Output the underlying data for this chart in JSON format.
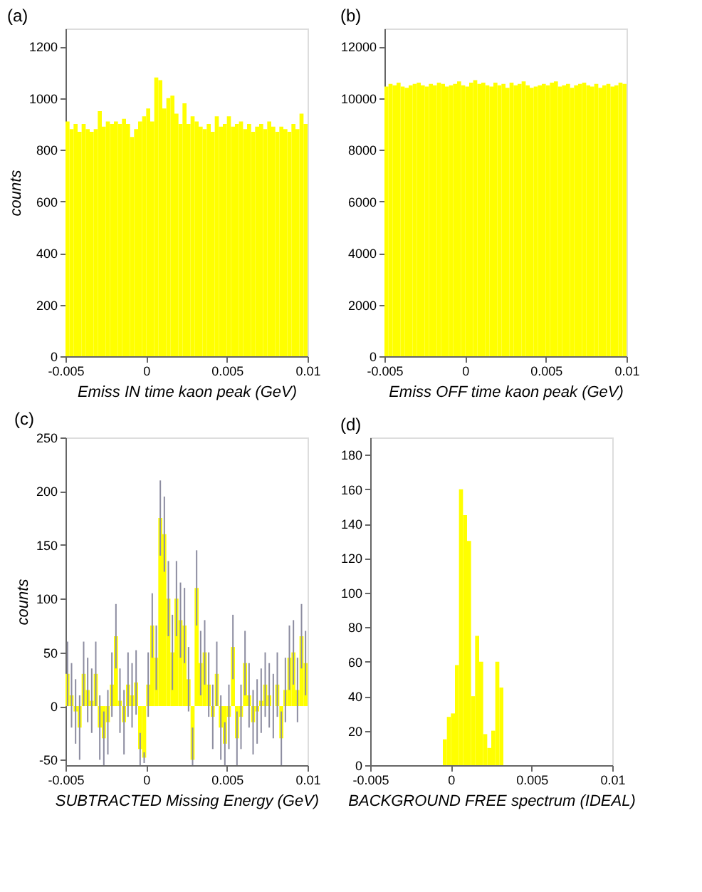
{
  "chart_data": [
    {
      "type": "histogram",
      "title": "(a)",
      "xlabel": "Emiss IN time kaon peak (GeV)",
      "ylabel": "counts",
      "color": "#ffff00",
      "bins": [
        -0.005,
        -0.00475,
        -0.0045,
        -0.00425,
        -0.004,
        -0.00375,
        -0.0035,
        -0.00325,
        -0.003,
        -0.00275,
        -0.0025,
        -0.00225,
        -0.002,
        -0.00175,
        -0.0015,
        -0.00125,
        -0.001,
        -0.00075,
        -0.0005,
        -0.00025,
        0,
        0.00025,
        0.0005,
        0.00075,
        0.001,
        0.00125,
        0.0015,
        0.00175,
        0.002,
        0.00225,
        0.0025,
        0.00275,
        0.003,
        0.00325,
        0.0035,
        0.00375,
        0.004,
        0.00425,
        0.0045,
        0.00475,
        0.005,
        0.00525,
        0.0055,
        0.00575,
        0.006,
        0.00625,
        0.0065,
        0.00675,
        0.007,
        0.00725,
        0.0075,
        0.00775,
        0.008,
        0.00825,
        0.0085,
        0.00875,
        0.009,
        0.00925,
        0.0095,
        0.00975,
        0.01
      ],
      "values": [
        910,
        880,
        900,
        870,
        900,
        880,
        870,
        880,
        950,
        890,
        910,
        900,
        910,
        900,
        920,
        900,
        850,
        880,
        910,
        930,
        960,
        910,
        1080,
        1070,
        960,
        1000,
        1010,
        940,
        900,
        980,
        900,
        930,
        910,
        890,
        880,
        900,
        870,
        930,
        890,
        900,
        930,
        890,
        900,
        910,
        880,
        900,
        870,
        890,
        900,
        880,
        910,
        890,
        870,
        890,
        880,
        870,
        900,
        880,
        940,
        900
      ],
      "xlim": [
        -0.005,
        0.01
      ],
      "xticks": [
        -0.005,
        0,
        0.005,
        0.01
      ],
      "ylim": [
        0,
        1270
      ],
      "yticks": [
        0,
        200,
        400,
        600,
        800,
        1000,
        1200
      ]
    },
    {
      "type": "histogram",
      "title": "(b)",
      "xlabel": "Emiss OFF time kaon peak (GeV)",
      "color": "#ffff00",
      "bins": [
        -0.005,
        -0.00475,
        -0.0045,
        -0.00425,
        -0.004,
        -0.00375,
        -0.0035,
        -0.00325,
        -0.003,
        -0.00275,
        -0.0025,
        -0.00225,
        -0.002,
        -0.00175,
        -0.0015,
        -0.00125,
        -0.001,
        -0.00075,
        -0.0005,
        -0.00025,
        0,
        0.00025,
        0.0005,
        0.00075,
        0.001,
        0.00125,
        0.0015,
        0.00175,
        0.002,
        0.00225,
        0.0025,
        0.00275,
        0.003,
        0.00325,
        0.0035,
        0.00375,
        0.004,
        0.00425,
        0.0045,
        0.00475,
        0.005,
        0.00525,
        0.0055,
        0.00575,
        0.006,
        0.00625,
        0.0065,
        0.00675,
        0.007,
        0.00725,
        0.0075,
        0.00775,
        0.008,
        0.00825,
        0.0085,
        0.00875,
        0.009,
        0.00925,
        0.0095,
        0.00975,
        0.01
      ],
      "values": [
        10450,
        10550,
        10500,
        10600,
        10450,
        10400,
        10500,
        10550,
        10600,
        10500,
        10450,
        10550,
        10500,
        10600,
        10550,
        10450,
        10500,
        10550,
        10650,
        10500,
        10450,
        10600,
        10700,
        10550,
        10600,
        10500,
        10450,
        10600,
        10500,
        10550,
        10400,
        10600,
        10500,
        10550,
        10650,
        10500,
        10400,
        10450,
        10500,
        10550,
        10500,
        10600,
        10650,
        10450,
        10500,
        10550,
        10400,
        10500,
        10550,
        10600,
        10500,
        10450,
        10550,
        10400,
        10500,
        10550,
        10450,
        10500,
        10600,
        10550
      ],
      "xlim": [
        -0.005,
        0.01
      ],
      "xticks": [
        -0.005,
        0,
        0.005,
        0.01
      ],
      "ylim": [
        0,
        12700
      ],
      "yticks": [
        0,
        2000,
        4000,
        6000,
        8000,
        10000,
        12000
      ]
    },
    {
      "type": "histogram",
      "title": "(c)",
      "xlabel": "SUBTRACTED Missing Energy (GeV)",
      "ylabel": "counts",
      "color": "#ffff00",
      "bins": [
        -0.005,
        -0.00475,
        -0.0045,
        -0.00425,
        -0.004,
        -0.00375,
        -0.0035,
        -0.00325,
        -0.003,
        -0.00275,
        -0.0025,
        -0.00225,
        -0.002,
        -0.00175,
        -0.0015,
        -0.00125,
        -0.001,
        -0.00075,
        -0.0005,
        -0.00025,
        0,
        0.00025,
        0.0005,
        0.00075,
        0.001,
        0.00125,
        0.0015,
        0.00175,
        0.002,
        0.00225,
        0.0025,
        0.00275,
        0.003,
        0.00325,
        0.0035,
        0.00375,
        0.004,
        0.00425,
        0.0045,
        0.00475,
        0.005,
        0.00525,
        0.0055,
        0.00575,
        0.006,
        0.00625,
        0.0065,
        0.00675,
        0.007,
        0.00725,
        0.0075,
        0.00775,
        0.008,
        0.00825,
        0.0085,
        0.00875,
        0.009,
        0.00925,
        0.0095,
        0.00975,
        0.01
      ],
      "values": [
        30,
        10,
        -5,
        -20,
        30,
        15,
        5,
        30,
        -20,
        -30,
        -15,
        20,
        65,
        5,
        -15,
        20,
        10,
        22,
        -40,
        -48,
        20,
        75,
        45,
        175,
        160,
        100,
        50,
        100,
        80,
        75,
        25,
        -50,
        110,
        40,
        50,
        20,
        -10,
        30,
        -20,
        -35,
        -10,
        55,
        -30,
        -10,
        40,
        10,
        -15,
        -5,
        5,
        20,
        10,
        0,
        20,
        -30,
        15,
        45,
        50,
        15,
        65,
        40
      ],
      "errors": [
        30,
        30,
        30,
        30,
        30,
        30,
        30,
        30,
        30,
        25,
        30,
        30,
        30,
        30,
        30,
        30,
        30,
        30,
        15,
        5,
        30,
        30,
        30,
        35,
        35,
        35,
        35,
        35,
        35,
        35,
        30,
        [
          -55,
          -20
        ],
        35,
        30,
        30,
        30,
        30,
        30,
        30,
        20,
        30,
        30,
        25,
        30,
        30,
        30,
        30,
        30,
        30,
        30,
        30,
        30,
        30,
        25,
        30,
        30,
        30,
        30,
        30,
        30
      ],
      "xlim": [
        -0.005,
        0.01
      ],
      "xticks": [
        -0.005,
        0,
        0.005,
        0.01
      ],
      "ylim": [
        -55,
        250
      ],
      "yticks": [
        -50,
        0,
        50,
        100,
        150,
        200,
        250
      ]
    },
    {
      "type": "histogram",
      "title": "(d)",
      "xlabel": "BACKGROUND FREE spectrum (IDEAL)",
      "color": "#ffff00",
      "bins": [
        -0.005,
        -0.00475,
        -0.0045,
        -0.00425,
        -0.004,
        -0.00375,
        -0.0035,
        -0.00325,
        -0.003,
        -0.00275,
        -0.0025,
        -0.00225,
        -0.002,
        -0.00175,
        -0.0015,
        -0.00125,
        -0.001,
        -0.00075,
        -0.0005,
        -0.00025,
        0,
        0.00025,
        0.0005,
        0.00075,
        0.001,
        0.00125,
        0.0015,
        0.00175,
        0.002,
        0.00225,
        0.0025,
        0.00275,
        0.003,
        0.00325,
        0.0035,
        0.00375,
        0.004,
        0.00425,
        0.0045,
        0.00475,
        0.005,
        0.00525,
        0.0055,
        0.00575,
        0.006,
        0.00625,
        0.0065,
        0.00675,
        0.007,
        0.00725,
        0.0075,
        0.00775,
        0.008,
        0.00825,
        0.0085,
        0.00875,
        0.009,
        0.00925,
        0.0095,
        0.00975,
        0.01
      ],
      "values": [
        null,
        null,
        null,
        null,
        null,
        null,
        null,
        null,
        null,
        null,
        null,
        null,
        null,
        null,
        null,
        null,
        null,
        null,
        15,
        28,
        30,
        58,
        160,
        145,
        130,
        40,
        75,
        60,
        18,
        10,
        20,
        60,
        45,
        null,
        null,
        null,
        null,
        null,
        null,
        null,
        null,
        null,
        null,
        null,
        null,
        null,
        null,
        null,
        null,
        null,
        null,
        null,
        null,
        null,
        null,
        null,
        null,
        null,
        null,
        null
      ],
      "xlim": [
        -0.005,
        0.01
      ],
      "xticks": [
        -0.005,
        0,
        0.005,
        0.01
      ],
      "ylim": [
        0,
        190
      ],
      "yticks": [
        0,
        20,
        40,
        60,
        80,
        100,
        120,
        140,
        160,
        180
      ]
    }
  ]
}
